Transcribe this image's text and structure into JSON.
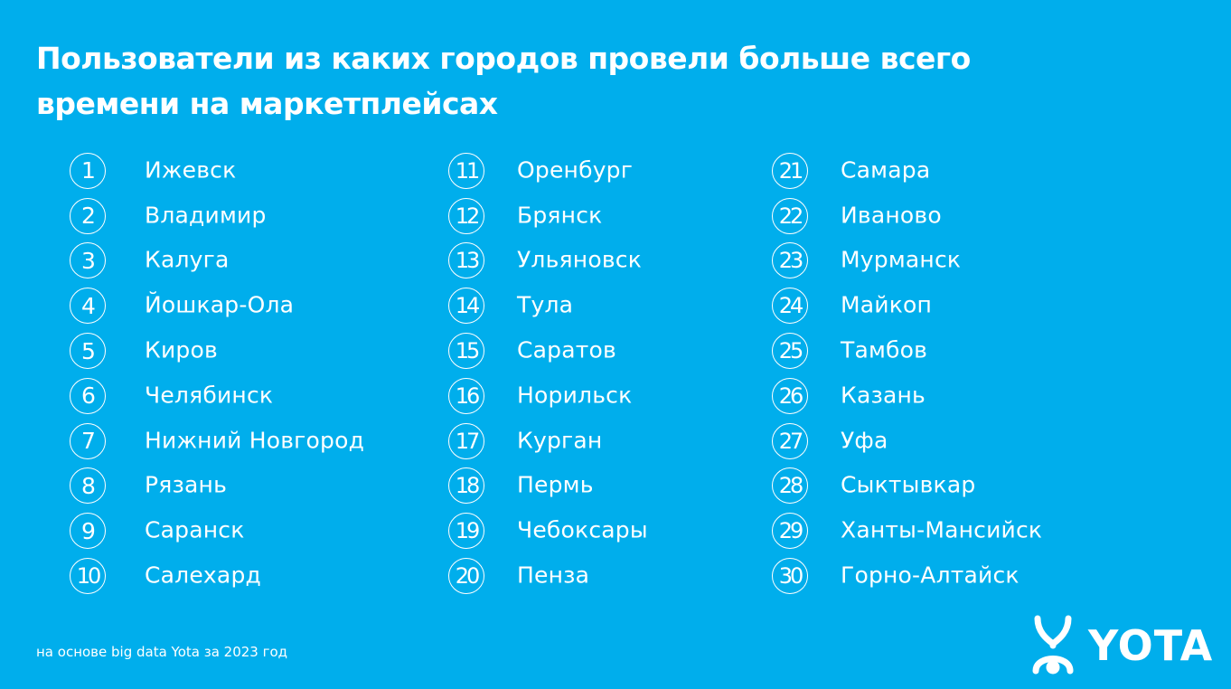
{
  "slide": {
    "title": "Пользователи из каких городов провели больше всего времени на маркетплейсах",
    "background_color": "#00AEEC",
    "text_color": "#FFFFFF"
  },
  "ranking": {
    "columns": [
      [
        {
          "rank": "1",
          "city": "Ижевск"
        },
        {
          "rank": "2",
          "city": "Владимир"
        },
        {
          "rank": "3",
          "city": "Калуга"
        },
        {
          "rank": "4",
          "city": "Йошкар-Ола"
        },
        {
          "rank": "5",
          "city": "Киров"
        },
        {
          "rank": "6",
          "city": "Челябинск"
        },
        {
          "rank": "7",
          "city": "Нижний Новгород"
        },
        {
          "rank": "8",
          "city": "Рязань"
        },
        {
          "rank": "9",
          "city": "Саранск"
        },
        {
          "rank": "10",
          "city": "Салехард"
        }
      ],
      [
        {
          "rank": "11",
          "city": "Оренбург"
        },
        {
          "rank": "12",
          "city": "Брянск"
        },
        {
          "rank": "13",
          "city": "Ульяновск"
        },
        {
          "rank": "14",
          "city": "Тула"
        },
        {
          "rank": "15",
          "city": "Саратов"
        },
        {
          "rank": "16",
          "city": "Норильск"
        },
        {
          "rank": "17",
          "city": "Курган"
        },
        {
          "rank": "18",
          "city": "Пермь"
        },
        {
          "rank": "19",
          "city": "Чебоксары"
        },
        {
          "rank": "20",
          "city": "Пенза"
        }
      ],
      [
        {
          "rank": "21",
          "city": "Самара"
        },
        {
          "rank": "22",
          "city": "Иваново"
        },
        {
          "rank": "23",
          "city": "Мурманск"
        },
        {
          "rank": "24",
          "city": "Майкоп"
        },
        {
          "rank": "25",
          "city": "Тамбов"
        },
        {
          "rank": "26",
          "city": "Казань"
        },
        {
          "rank": "27",
          "city": "Уфа"
        },
        {
          "rank": "28",
          "city": "Сыктывкар"
        },
        {
          "rank": "29",
          "city": "Ханты-Мансийск"
        },
        {
          "rank": "30",
          "city": "Горно-Алтайск"
        }
      ]
    ]
  },
  "footer": {
    "source_note": "на основе big data Yota за 2023 год",
    "logo_text": "YOTA",
    "logo_icon": "yota-logo-icon"
  }
}
